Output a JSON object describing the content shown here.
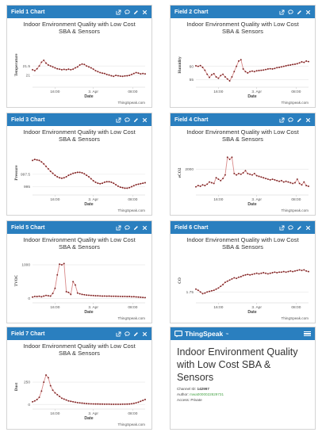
{
  "tool_icons": [
    "external-link-icon",
    "comment-icon",
    "pencil-icon",
    "close-icon"
  ],
  "credit": "ThingSpeak.com",
  "x_label": "Date",
  "x_ticks": [
    "16:00",
    "3. Apr",
    "08:00"
  ],
  "colors": {
    "header": "#2a7fbf",
    "line": "#d98a8a",
    "marker": "#7a2424",
    "grid": "#e6e6e6"
  },
  "charts": [
    {
      "id": 1,
      "header": "Field 1 Chart",
      "title_line1": "Indoor Environment Quality with Low Cost",
      "title_line2": "SBA & Sensors",
      "chart_data": {
        "type": "line",
        "title": "Indoor Environment Quality with Low Cost SBA & Sensors",
        "xlabel": "Date",
        "ylabel": "Temperature",
        "ylim": [
          20.5,
          22.6
        ],
        "yticks": [
          21,
          21.5
        ],
        "x": [
          0.0,
          0.02,
          0.04,
          0.06,
          0.08,
          0.1,
          0.12,
          0.14,
          0.16,
          0.18,
          0.2,
          0.22,
          0.24,
          0.26,
          0.28,
          0.3,
          0.32,
          0.34,
          0.36,
          0.38,
          0.4,
          0.42,
          0.44,
          0.46,
          0.48,
          0.5,
          0.52,
          0.54,
          0.56,
          0.58,
          0.6,
          0.62,
          0.64,
          0.66,
          0.68,
          0.7,
          0.72,
          0.74,
          0.76,
          0.78,
          0.8,
          0.82,
          0.84,
          0.86,
          0.88,
          0.9,
          0.92,
          0.94,
          0.96,
          0.98,
          1.0
        ],
        "y": [
          21.3,
          21.25,
          21.35,
          21.5,
          21.7,
          21.8,
          21.65,
          21.55,
          21.5,
          21.45,
          21.4,
          21.35,
          21.33,
          21.3,
          21.32,
          21.3,
          21.33,
          21.3,
          21.33,
          21.4,
          21.45,
          21.55,
          21.6,
          21.58,
          21.5,
          21.45,
          21.4,
          21.33,
          21.25,
          21.2,
          21.15,
          21.12,
          21.1,
          21.05,
          21.02,
          20.98,
          20.95,
          21.0,
          20.98,
          20.96,
          20.95,
          20.97,
          20.98,
          21.0,
          21.05,
          21.1,
          21.15,
          21.12,
          21.08,
          21.1,
          21.08
        ]
      }
    },
    {
      "id": 2,
      "header": "Field 2 Chart",
      "title_line1": "Indoor Environment Quality with Low Cost",
      "title_line2": "SBA & Sensors",
      "chart_data": {
        "type": "line",
        "title": "Indoor Environment Quality with Low Cost SBA & Sensors",
        "xlabel": "Date",
        "ylabel": "Humidity",
        "ylim": [
          53,
          68
        ],
        "yticks": [
          55,
          60
        ],
        "x": [
          0.0,
          0.02,
          0.04,
          0.06,
          0.08,
          0.1,
          0.12,
          0.14,
          0.16,
          0.18,
          0.2,
          0.22,
          0.24,
          0.26,
          0.28,
          0.3,
          0.32,
          0.34,
          0.36,
          0.38,
          0.4,
          0.42,
          0.44,
          0.46,
          0.48,
          0.5,
          0.52,
          0.54,
          0.56,
          0.58,
          0.6,
          0.62,
          0.64,
          0.66,
          0.68,
          0.7,
          0.72,
          0.74,
          0.76,
          0.78,
          0.8,
          0.82,
          0.84,
          0.86,
          0.88,
          0.9,
          0.92,
          0.94,
          0.96,
          0.98,
          1.0
        ],
        "y": [
          60.2,
          60.0,
          60.3,
          59.6,
          58.5,
          57.0,
          55.8,
          56.8,
          57.2,
          56.0,
          55.5,
          56.5,
          57.0,
          56.0,
          55.2,
          54.5,
          56.0,
          58.0,
          60.0,
          62.0,
          62.5,
          59.0,
          58.0,
          57.5,
          58.0,
          58.2,
          58.0,
          58.3,
          58.4,
          58.5,
          58.6,
          58.8,
          59.0,
          59.1,
          59.0,
          59.2,
          59.5,
          59.6,
          59.8,
          60.0,
          60.2,
          60.4,
          60.5,
          60.7,
          60.8,
          61.0,
          61.3,
          61.7,
          61.5,
          62.0,
          61.8
        ]
      }
    },
    {
      "id": 3,
      "header": "Field 3 Chart",
      "title_line1": "Indoor Environment Quality with Low Cost",
      "title_line2": "SBA & Sensors",
      "chart_data": {
        "type": "line",
        "title": "Indoor Environment Quality with Low Cost SBA & Sensors",
        "xlabel": "Date",
        "ylabel": "Pressure",
        "ylim": [
          993.8,
          1001.8
        ],
        "yticks": [
          995,
          997.5
        ],
        "x": [
          0.0,
          0.02,
          0.04,
          0.06,
          0.08,
          0.1,
          0.12,
          0.14,
          0.16,
          0.18,
          0.2,
          0.22,
          0.24,
          0.26,
          0.28,
          0.3,
          0.32,
          0.34,
          0.36,
          0.38,
          0.4,
          0.42,
          0.44,
          0.46,
          0.48,
          0.5,
          0.52,
          0.54,
          0.56,
          0.58,
          0.6,
          0.62,
          0.64,
          0.66,
          0.68,
          0.7,
          0.72,
          0.74,
          0.76,
          0.78,
          0.8,
          0.82,
          0.84,
          0.86,
          0.88,
          0.9,
          0.92,
          0.94,
          0.96,
          0.98,
          1.0
        ],
        "y": [
          1000.3,
          1000.5,
          1000.4,
          1000.3,
          1000.0,
          999.6,
          999.1,
          998.6,
          998.1,
          997.7,
          997.3,
          997.0,
          996.8,
          996.7,
          996.8,
          997.0,
          997.3,
          997.5,
          997.7,
          997.8,
          997.9,
          997.9,
          997.8,
          997.6,
          997.3,
          997.0,
          996.6,
          996.2,
          995.9,
          995.7,
          995.6,
          995.7,
          995.9,
          996.0,
          996.0,
          995.9,
          995.7,
          995.4,
          995.1,
          994.9,
          994.8,
          994.7,
          994.7,
          994.8,
          995.0,
          995.2,
          995.4,
          995.5,
          995.6,
          995.7,
          995.8
        ]
      }
    },
    {
      "id": 4,
      "header": "Field 4 Chart",
      "title_line1": "Indoor Environment Quality with Low Cost",
      "title_line2": "SBA & Sensors",
      "chart_data": {
        "type": "line",
        "title": "Indoor Environment Quality with Low Cost SBA & Sensors",
        "xlabel": "Date",
        "ylabel": "eCO2",
        "ylim": [
          350,
          3150
        ],
        "yticks": [
          2000
        ],
        "x": [
          0.0,
          0.02,
          0.04,
          0.06,
          0.08,
          0.1,
          0.12,
          0.14,
          0.16,
          0.18,
          0.2,
          0.22,
          0.24,
          0.26,
          0.28,
          0.3,
          0.32,
          0.34,
          0.36,
          0.38,
          0.4,
          0.42,
          0.44,
          0.46,
          0.48,
          0.5,
          0.52,
          0.54,
          0.56,
          0.58,
          0.6,
          0.62,
          0.64,
          0.66,
          0.68,
          0.7,
          0.72,
          0.74,
          0.76,
          0.78,
          0.8,
          0.82,
          0.84,
          0.86,
          0.88,
          0.9,
          0.92,
          0.94,
          0.96,
          0.98,
          1.0
        ],
        "y": [
          760,
          850,
          800,
          900,
          850,
          950,
          1100,
          1050,
          1000,
          1400,
          1300,
          1200,
          1350,
          1600,
          2850,
          2700,
          2850,
          1700,
          1600,
          1700,
          1650,
          1750,
          1900,
          1700,
          1650,
          1600,
          1700,
          1550,
          1500,
          1450,
          1400,
          1350,
          1300,
          1250,
          1300,
          1250,
          1200,
          1150,
          1200,
          1100,
          1150,
          1100,
          1050,
          1000,
          1050,
          1300,
          1000,
          900,
          1100,
          850,
          800
        ]
      }
    },
    {
      "id": 5,
      "header": "Field 5 Chart",
      "title_line1": "Indoor Environment Quality with Low Cost",
      "title_line2": "SBA & Sensors",
      "chart_data": {
        "type": "line",
        "title": "Indoor Environment Quality with Low Cost SBA & Sensors",
        "xlabel": "Date",
        "ylabel": "TVOC",
        "ylim": [
          -60,
          1120
        ],
        "yticks": [
          0,
          1000
        ],
        "x": [
          0.0,
          0.02,
          0.04,
          0.06,
          0.08,
          0.1,
          0.12,
          0.14,
          0.16,
          0.18,
          0.2,
          0.22,
          0.24,
          0.26,
          0.28,
          0.3,
          0.32,
          0.34,
          0.36,
          0.38,
          0.4,
          0.42,
          0.44,
          0.46,
          0.48,
          0.5,
          0.52,
          0.54,
          0.56,
          0.58,
          0.6,
          0.62,
          0.64,
          0.66,
          0.68,
          0.7,
          0.72,
          0.74,
          0.76,
          0.78,
          0.8,
          0.82,
          0.84,
          0.86,
          0.88,
          0.9,
          0.92,
          0.94,
          0.96,
          0.98,
          1.0
        ],
        "y": [
          40,
          60,
          55,
          65,
          50,
          70,
          90,
          80,
          70,
          150,
          300,
          700,
          1020,
          1000,
          1040,
          200,
          180,
          120,
          500,
          400,
          160,
          140,
          120,
          110,
          100,
          95,
          90,
          85,
          80,
          80,
          75,
          70,
          72,
          68,
          70,
          65,
          66,
          64,
          62,
          60,
          58,
          60,
          55,
          58,
          50,
          52,
          45,
          40,
          35,
          30,
          25
        ]
      }
    },
    {
      "id": 6,
      "header": "Field 6 Chart",
      "title_line1": "Indoor Environment Quality with Low Cost",
      "title_line2": "SBA & Sensors",
      "chart_data": {
        "type": "line",
        "title": "Indoor Environment Quality with Low Cost SBA & Sensors",
        "xlabel": "Date",
        "ylabel": "CO",
        "ylim": [
          1.6,
          2.3
        ],
        "yticks": [
          1.75
        ],
        "x": [
          0.0,
          0.02,
          0.04,
          0.06,
          0.08,
          0.1,
          0.12,
          0.14,
          0.16,
          0.18,
          0.2,
          0.22,
          0.24,
          0.26,
          0.28,
          0.3,
          0.32,
          0.34,
          0.36,
          0.38,
          0.4,
          0.42,
          0.44,
          0.46,
          0.48,
          0.5,
          0.52,
          0.54,
          0.56,
          0.58,
          0.6,
          0.62,
          0.64,
          0.66,
          0.68,
          0.7,
          0.72,
          0.74,
          0.76,
          0.78,
          0.8,
          0.82,
          0.84,
          0.86,
          0.88,
          0.9,
          0.92,
          0.94,
          0.96,
          0.98,
          1.0
        ],
        "y": [
          1.8,
          1.78,
          1.75,
          1.72,
          1.73,
          1.75,
          1.76,
          1.77,
          1.78,
          1.8,
          1.82,
          1.85,
          1.88,
          1.92,
          1.94,
          1.96,
          1.98,
          2.0,
          1.99,
          2.01,
          2.02,
          2.04,
          2.05,
          2.06,
          2.05,
          2.06,
          2.07,
          2.08,
          2.07,
          2.08,
          2.09,
          2.08,
          2.07,
          2.08,
          2.09,
          2.1,
          2.09,
          2.1,
          2.1,
          2.11,
          2.1,
          2.11,
          2.12,
          2.11,
          2.12,
          2.13,
          2.14,
          2.13,
          2.14,
          2.12,
          2.11
        ]
      }
    },
    {
      "id": 7,
      "header": "Field 7 Chart",
      "title_line1": "Indoor Environment Quality with Low Cost",
      "title_line2": "SBA & Sensors",
      "chart_data": {
        "type": "line",
        "title": "Indoor Environment Quality with Low Cost SBA & Sensors",
        "xlabel": "Date",
        "ylabel": "Dust",
        "ylim": [
          -25,
          420
        ],
        "yticks": [
          0,
          250
        ],
        "x": [
          0.0,
          0.02,
          0.04,
          0.06,
          0.08,
          0.1,
          0.12,
          0.14,
          0.16,
          0.18,
          0.2,
          0.22,
          0.24,
          0.26,
          0.28,
          0.3,
          0.32,
          0.34,
          0.36,
          0.38,
          0.4,
          0.42,
          0.44,
          0.46,
          0.48,
          0.5,
          0.52,
          0.54,
          0.56,
          0.58,
          0.6,
          0.62,
          0.64,
          0.66,
          0.68,
          0.7,
          0.72,
          0.74,
          0.76,
          0.78,
          0.8,
          0.82,
          0.84,
          0.86,
          0.88,
          0.9,
          0.92,
          0.94,
          0.96,
          0.98,
          1.0
        ],
        "y": [
          30,
          40,
          55,
          80,
          150,
          250,
          330,
          300,
          210,
          160,
          130,
          110,
          90,
          70,
          60,
          50,
          40,
          35,
          30,
          25,
          20,
          18,
          15,
          12,
          10,
          8,
          7,
          6,
          5,
          5,
          4,
          4,
          3,
          3,
          3,
          2,
          2,
          2,
          2,
          2,
          3,
          3,
          4,
          5,
          8,
          12,
          18,
          25,
          35,
          45,
          55
        ]
      }
    }
  ],
  "channel": {
    "logo_text": "ThingSpeak",
    "logo_tm": "™",
    "title": "Indoor Environment Quality with Low Cost SBA & Sensors",
    "id_label": "Channel ID:",
    "id_value": "142997",
    "author_label": "Author:",
    "author_value": "mwa0000022829731",
    "access_label": "Access:",
    "access_value": "Private"
  }
}
